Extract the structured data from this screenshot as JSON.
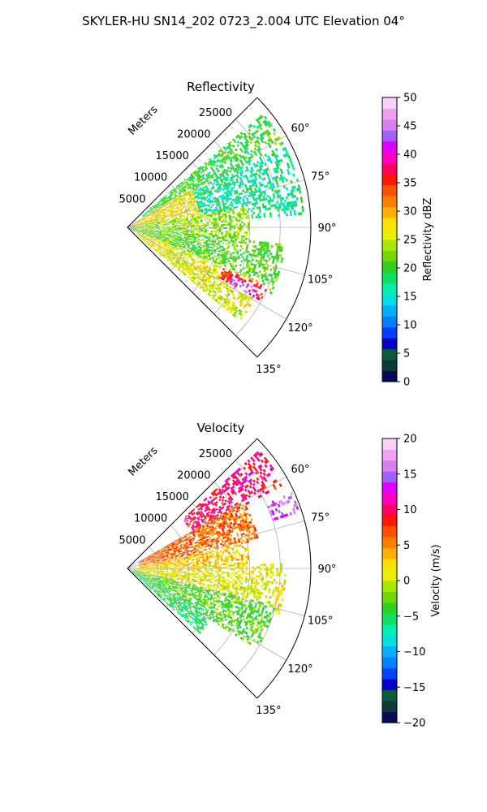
{
  "figure": {
    "title": "SKYLER-HU  SN14_202  0723_2.004 UTC Elevation 04°"
  },
  "chart_data": [
    {
      "type": "heatmap",
      "projection": "polar-sector",
      "title": "Reflectivity",
      "radial_label": "Meters",
      "radial_ticks": [
        5000,
        10000,
        15000,
        20000,
        25000
      ],
      "radial_tick_labels": [
        "5000",
        "10000",
        "15000",
        "20000",
        "25000"
      ],
      "rmax": 30000,
      "theta_range": [
        45,
        135
      ],
      "theta_ticks": [
        60,
        75,
        90,
        105,
        120,
        135
      ],
      "theta_tick_labels": [
        "60°",
        "75°",
        "90°",
        "105°",
        "120°",
        "135°"
      ],
      "grid": true,
      "colorbar": {
        "label": "Reflectivity dBZ",
        "range": [
          0,
          50
        ],
        "ticks": [
          0,
          5,
          10,
          15,
          20,
          25,
          30,
          35,
          40,
          45,
          50
        ],
        "tick_labels": [
          "0",
          "5",
          "10",
          "15",
          "20",
          "25",
          "30",
          "35",
          "40",
          "45",
          "50"
        ],
        "colors": [
          "#0a0a5a",
          "#0d3a3a",
          "#0b5a3a",
          "#0000c8",
          "#0040ff",
          "#0080ff",
          "#00b0ff",
          "#00e0e0",
          "#00f0b0",
          "#10e060",
          "#30d020",
          "#70d800",
          "#a8e800",
          "#e8f000",
          "#ffe000",
          "#ffb000",
          "#ff8000",
          "#ff5000",
          "#ff1800",
          "#ff0060",
          "#ff00c0",
          "#e000ff",
          "#a060ff",
          "#d880f0",
          "#f0a0f0",
          "#f8d0f8"
        ]
      },
      "fields": [
        {
          "theta": [
            50,
            62
          ],
          "r": [
            3000,
            29000
          ],
          "value": 20
        },
        {
          "theta": [
            62,
            86
          ],
          "r": [
            1000,
            29000
          ],
          "value": 17
        },
        {
          "theta": [
            58,
            82
          ],
          "r": [
            0,
            12000
          ],
          "value": 27
        },
        {
          "theta": [
            80,
            96
          ],
          "r": [
            0,
            20000
          ],
          "value": 23
        },
        {
          "theta": [
            96,
            115
          ],
          "r": [
            0,
            26000
          ],
          "value": 21
        },
        {
          "theta": [
            112,
            130
          ],
          "r": [
            2000,
            24000
          ],
          "value": 26
        },
        {
          "theta": [
            113,
            119
          ],
          "r": [
            17000,
            25000
          ],
          "value": 36
        },
        {
          "theta": [
            115,
            119
          ],
          "r": [
            19000,
            24000
          ],
          "value": 42
        }
      ]
    },
    {
      "type": "heatmap",
      "projection": "polar-sector",
      "title": "Velocity",
      "radial_label": "Meters",
      "radial_ticks": [
        5000,
        10000,
        15000,
        20000,
        25000
      ],
      "radial_tick_labels": [
        "5000",
        "10000",
        "15000",
        "20000",
        "25000"
      ],
      "rmax": 30000,
      "theta_range": [
        45,
        135
      ],
      "theta_ticks": [
        60,
        75,
        90,
        105,
        120,
        135
      ],
      "theta_tick_labels": [
        "60°",
        "75°",
        "90°",
        "105°",
        "120°",
        "135°"
      ],
      "grid": true,
      "colorbar": {
        "label": "Velocity (m/s)",
        "range": [
          -20,
          20
        ],
        "ticks": [
          -20,
          -15,
          -10,
          -5,
          0,
          5,
          10,
          15,
          20
        ],
        "tick_labels": [
          "−20",
          "−15",
          "−10",
          "−5",
          "0",
          "5",
          "10",
          "15",
          "20"
        ],
        "colors": [
          "#0a0a5a",
          "#0d3a3a",
          "#0b5a3a",
          "#0000c8",
          "#0040ff",
          "#0080ff",
          "#00b0ff",
          "#00e0e0",
          "#00f0b0",
          "#10e060",
          "#30d020",
          "#70d800",
          "#a8e800",
          "#e8f000",
          "#ffe000",
          "#ffb000",
          "#ff8000",
          "#ff5000",
          "#ff1800",
          "#ff0060",
          "#ff00c0",
          "#e000ff",
          "#a060ff",
          "#d880f0",
          "#f0a0f0",
          "#f8d0f8"
        ]
      },
      "fields": [
        {
          "theta": [
            48,
            62
          ],
          "r": [
            12000,
            29000
          ],
          "value": 10
        },
        {
          "theta": [
            60,
            78
          ],
          "r": [
            2000,
            22000
          ],
          "value": 6
        },
        {
          "theta": [
            78,
            92
          ],
          "r": [
            2000,
            20000
          ],
          "value": 3
        },
        {
          "theta": [
            88,
            108
          ],
          "r": [
            1000,
            26000
          ],
          "value": 1
        },
        {
          "theta": [
            104,
            122
          ],
          "r": [
            1000,
            25000
          ],
          "value": -3
        },
        {
          "theta": [
            118,
            132
          ],
          "r": [
            1000,
            16000
          ],
          "value": -5
        },
        {
          "theta": [
            65,
            72
          ],
          "r": [
            25000,
            29500
          ],
          "value": 15
        }
      ]
    }
  ]
}
